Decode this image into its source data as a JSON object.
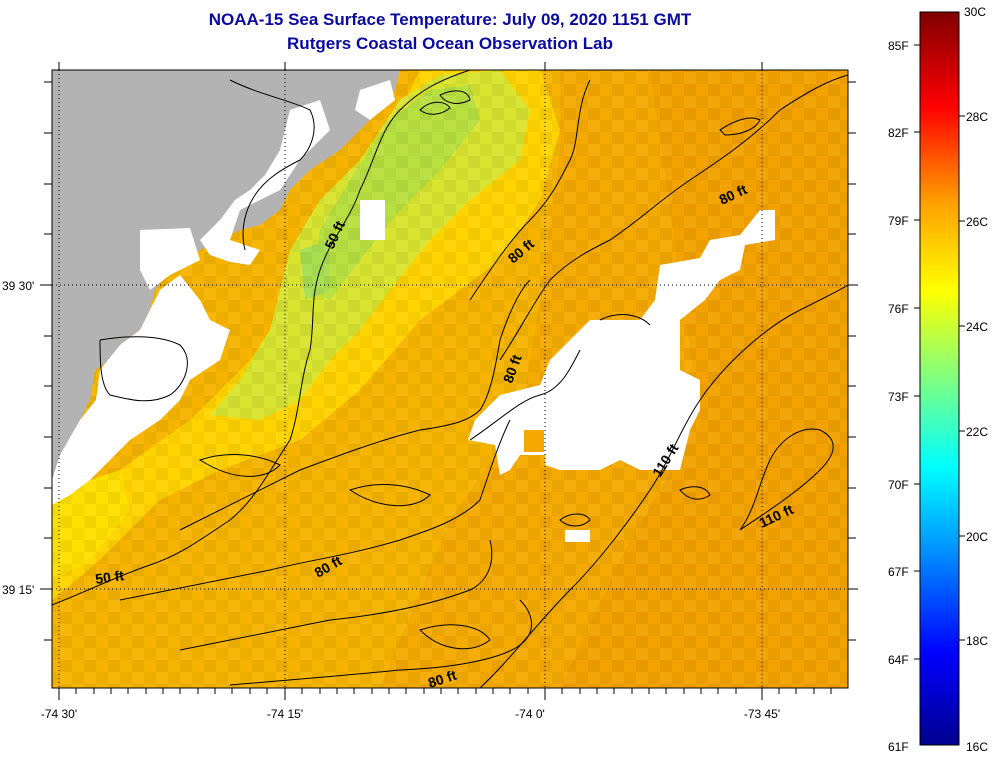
{
  "title": "NOAA-15 Sea Surface Temperature:  July 09, 2020 1151 GMT",
  "subtitle": "Rutgers Coastal Ocean Observation Lab",
  "x_ticks": [
    "-74 30'",
    "-74 15'",
    "-74 0'",
    "-73 45'"
  ],
  "y_ticks": [
    "39 30'",
    "39 15'"
  ],
  "contour_labels": [
    "50 ft",
    "50 ft",
    "80 ft",
    "80 ft",
    "80 ft",
    "80 ft",
    "80 ft",
    "110 ft",
    "110 ft"
  ],
  "colorbar": {
    "fahrenheit": [
      "85F",
      "82F",
      "79F",
      "76F",
      "73F",
      "70F",
      "67F",
      "64F",
      "61F"
    ],
    "celsius": [
      "30C",
      "28C",
      "26C",
      "24C",
      "22C",
      "20C",
      "18C",
      "16C"
    ],
    "range_c": [
      16,
      30
    ],
    "colors": [
      "#00008f",
      "#0000ff",
      "#00a0ff",
      "#00ffff",
      "#80ff80",
      "#ffff00",
      "#ffa000",
      "#ff0000",
      "#800000"
    ]
  },
  "colors": {
    "land": "#b3b3b3",
    "no_data": "#ffffff",
    "title": "#0a0aa0"
  }
}
